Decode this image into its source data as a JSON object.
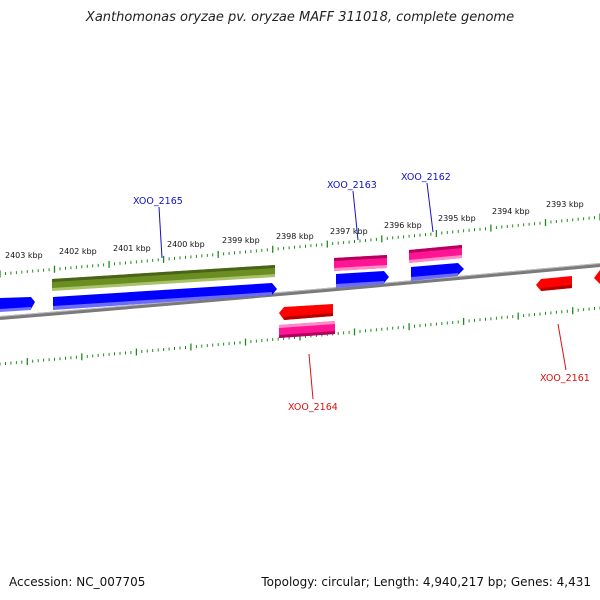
{
  "title": "Xanthomonas oryzae pv. oryzae MAFF 311018, complete genome",
  "footer": {
    "accession": "Accession: NC_007705",
    "summary": "Topology: circular; Length: 4,940,217 bp; Genes: 4,431"
  },
  "colors": {
    "backbone": "#808080",
    "tick": "#1e8a1e",
    "gene_blue": "#0000ff",
    "gene_olive": "#6b8e23",
    "gene_pink": "#ff1493",
    "gene_red": "#ff0000",
    "label_top": "#1010cc",
    "label_bottom": "#dd1010"
  },
  "chart_data": {
    "type": "genome-map",
    "ticks": [
      "2403 kbp",
      "2402 kbp",
      "2401 kbp",
      "2400 kbp",
      "2399 kbp",
      "2398 kbp",
      "2397 kbp",
      "2396 kbp",
      "2395 kbp",
      "2394 kbp",
      "2393 kbp"
    ],
    "gene_labels_top": [
      "XOO_2165",
      "XOO_2163",
      "XOO_2162"
    ],
    "gene_labels_bottom": [
      "XOO_2164",
      "XOO_2161"
    ]
  }
}
